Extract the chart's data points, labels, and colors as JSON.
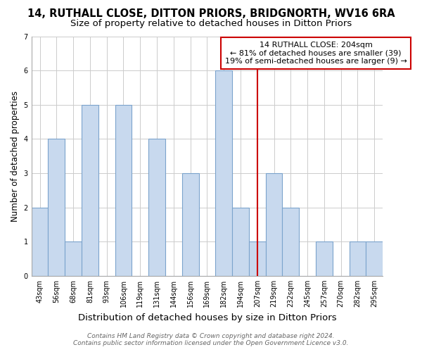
{
  "title": "14, RUTHALL CLOSE, DITTON PRIORS, BRIDGNORTH, WV16 6RA",
  "subtitle": "Size of property relative to detached houses in Ditton Priors",
  "xlabel": "Distribution of detached houses by size in Ditton Priors",
  "ylabel": "Number of detached properties",
  "bin_labels": [
    "43sqm",
    "56sqm",
    "68sqm",
    "81sqm",
    "93sqm",
    "106sqm",
    "119sqm",
    "131sqm",
    "144sqm",
    "156sqm",
    "169sqm",
    "182sqm",
    "194sqm",
    "207sqm",
    "219sqm",
    "232sqm",
    "245sqm",
    "257sqm",
    "270sqm",
    "282sqm",
    "295sqm"
  ],
  "counts": [
    2,
    4,
    1,
    5,
    0,
    5,
    0,
    4,
    0,
    3,
    0,
    6,
    2,
    1,
    3,
    2,
    0,
    1,
    0,
    1,
    1
  ],
  "bar_color": "#c8d9ee",
  "bar_edge_color": "#7ba3cc",
  "grid_color": "#cccccc",
  "property_line_index": 13,
  "annotation_title": "14 RUTHALL CLOSE: 204sqm",
  "annotation_line1": "← 81% of detached houses are smaller (39)",
  "annotation_line2": "19% of semi-detached houses are larger (9) →",
  "annotation_box_color": "#ffffff",
  "annotation_box_edge_color": "#cc0000",
  "property_line_color": "#cc0000",
  "ylim": [
    0,
    7
  ],
  "yticks": [
    0,
    1,
    2,
    3,
    4,
    5,
    6,
    7
  ],
  "footer_line1": "Contains HM Land Registry data © Crown copyright and database right 2024.",
  "footer_line2": "Contains public sector information licensed under the Open Government Licence v3.0.",
  "background_color": "#ffffff",
  "title_fontsize": 10.5,
  "subtitle_fontsize": 9.5,
  "xlabel_fontsize": 9.5,
  "ylabel_fontsize": 8.5,
  "tick_fontsize": 7,
  "annotation_fontsize": 8,
  "footer_fontsize": 6.5
}
